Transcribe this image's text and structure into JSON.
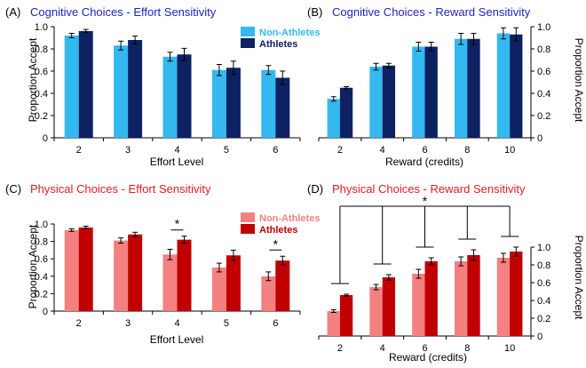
{
  "colors": {
    "cog_non": "#33b8f0",
    "cog_ath": "#0d2163",
    "phys_non": "#f58080",
    "phys_ath": "#c00000",
    "cog_title": "#1f1fc4",
    "phys_title": "#e51c1c"
  },
  "chart_data": [
    {
      "type": "bar",
      "panel": "A",
      "label": "(A)",
      "title": "Cognitive Choices - Effort Sensitivity",
      "xlabel": "Effort Level",
      "ylabel": "Proportion Accept",
      "ylabel_side": "left",
      "categories": [
        "2",
        "3",
        "4",
        "5",
        "6"
      ],
      "ylim": [
        0,
        1
      ],
      "yticks": [
        "0",
        "0.2",
        "0.4",
        "0.6",
        "0.8",
        "1.0"
      ],
      "series": [
        {
          "name": "Non-Athletes",
          "values": [
            0.92,
            0.83,
            0.73,
            0.61,
            0.61
          ],
          "errors": [
            0.02,
            0.04,
            0.04,
            0.05,
            0.04
          ]
        },
        {
          "name": "Athletes",
          "values": [
            0.96,
            0.88,
            0.75,
            0.63,
            0.54
          ],
          "errors": [
            0.015,
            0.035,
            0.055,
            0.06,
            0.06
          ]
        }
      ],
      "legend": "top-right",
      "annotations": []
    },
    {
      "type": "bar",
      "panel": "B",
      "label": "(B)",
      "title": "Cognitive Choices - Reward Sensitivity",
      "xlabel": "Reward (credits)",
      "ylabel": "Proportion Accept",
      "ylabel_side": "right",
      "categories": [
        "2",
        "4",
        "6",
        "8",
        "10"
      ],
      "ylim": [
        0,
        1
      ],
      "yticks": [
        "0",
        "0.2",
        "0.4",
        "0.6",
        "0.8",
        "1.0"
      ],
      "series": [
        {
          "name": "Non-Athletes",
          "values": [
            0.35,
            0.64,
            0.82,
            0.89,
            0.94
          ],
          "errors": [
            0.02,
            0.03,
            0.04,
            0.05,
            0.05
          ]
        },
        {
          "name": "Athletes",
          "values": [
            0.45,
            0.65,
            0.82,
            0.89,
            0.93
          ],
          "errors": [
            0.01,
            0.02,
            0.04,
            0.05,
            0.06
          ]
        }
      ],
      "legend": "none",
      "annotations": []
    },
    {
      "type": "bar",
      "panel": "C",
      "label": "(C)",
      "title": "Physical Choices - Effort Sensitivity",
      "xlabel": "Effort Level",
      "ylabel": "Proportion Accept",
      "ylabel_side": "left",
      "categories": [
        "2",
        "3",
        "4",
        "5",
        "6"
      ],
      "ylim": [
        0,
        1
      ],
      "yticks": [
        "0",
        "0.2",
        "0.4",
        "0.6",
        "0.8",
        "1.0"
      ],
      "series": [
        {
          "name": "Non-Athletes",
          "values": [
            0.93,
            0.81,
            0.65,
            0.5,
            0.4
          ],
          "errors": [
            0.015,
            0.03,
            0.06,
            0.05,
            0.05
          ]
        },
        {
          "name": "Athletes",
          "values": [
            0.96,
            0.88,
            0.82,
            0.64,
            0.58
          ],
          "errors": [
            0.015,
            0.025,
            0.04,
            0.06,
            0.05
          ]
        }
      ],
      "legend": "top-right",
      "annotations": [
        {
          "text": "*",
          "category": "4"
        },
        {
          "text": "*",
          "category": "6"
        }
      ]
    },
    {
      "type": "bar",
      "panel": "D",
      "label": "(D)",
      "title": "Physical Choices - Reward Sensitivity",
      "xlabel": "Reward (credits)",
      "ylabel": "Proportion Accept",
      "ylabel_side": "right",
      "categories": [
        "2",
        "4",
        "6",
        "8",
        "10"
      ],
      "ylim": [
        0,
        1
      ],
      "yticks": [
        "0",
        "0.2",
        "0.4",
        "0.6",
        "0.8",
        "1.0"
      ],
      "series": [
        {
          "name": "Non-Athletes",
          "values": [
            0.28,
            0.55,
            0.7,
            0.84,
            0.88
          ],
          "errors": [
            0.015,
            0.03,
            0.05,
            0.05,
            0.05
          ]
        },
        {
          "name": "Athletes",
          "values": [
            0.46,
            0.66,
            0.84,
            0.91,
            0.95
          ],
          "errors": [
            0.01,
            0.03,
            0.04,
            0.06,
            0.05
          ]
        }
      ],
      "legend": "none",
      "annotations": [
        {
          "text": "*",
          "category": "all"
        }
      ]
    }
  ]
}
